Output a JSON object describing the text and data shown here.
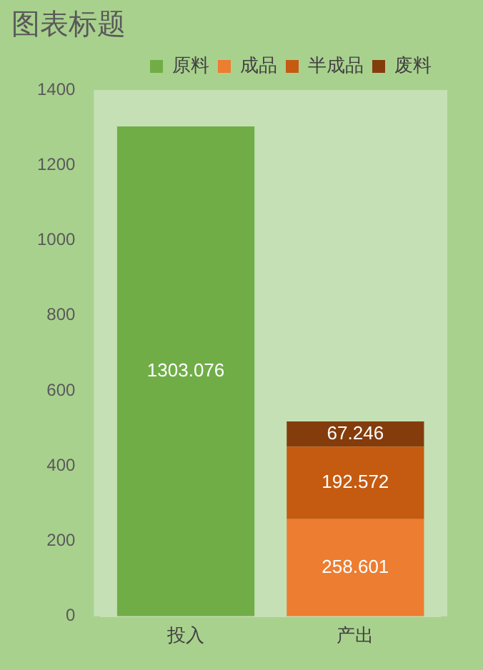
{
  "chart_data": {
    "type": "bar",
    "title": "图表标题",
    "categories": [
      "投入",
      "产出"
    ],
    "stacked": true,
    "series": [
      {
        "name": "原料",
        "color": "#70ad47",
        "values": [
          1303.076,
          null
        ]
      },
      {
        "name": "成品",
        "color": "#ed7d31",
        "values": [
          null,
          258.601
        ]
      },
      {
        "name": "半成品",
        "color": "#c55a11",
        "values": [
          null,
          192.572
        ]
      },
      {
        "name": "废料",
        "color": "#843c0c",
        "values": [
          null,
          67.246
        ]
      }
    ],
    "ylim": [
      0,
      1400
    ],
    "yticks": [
      0,
      200,
      400,
      600,
      800,
      1000,
      1200,
      1400
    ],
    "grid": false,
    "legend": "top right",
    "data_labels": true
  }
}
